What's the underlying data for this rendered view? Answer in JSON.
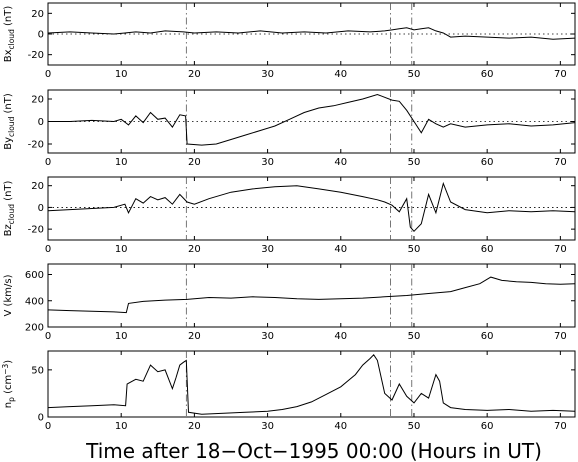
{
  "chart_data": [
    {
      "type": "line",
      "panel_id": "bx",
      "ylabel": "Bx",
      "ylabel_sub": "cloud",
      "ylabel_unit": "(nT)",
      "xlim": [
        0,
        72
      ],
      "ylim": [
        -30,
        30
      ],
      "yticks": [
        -20,
        0,
        20
      ],
      "xticks": [
        0,
        10,
        20,
        30,
        40,
        50,
        60,
        70
      ],
      "zero_line": true,
      "series": [
        {
          "x": [
            0,
            3,
            6,
            9,
            10.5,
            12,
            14,
            16,
            18.5,
            20,
            23,
            26,
            29,
            32,
            35,
            38,
            41,
            44,
            46,
            47,
            48,
            49,
            50,
            51,
            52,
            53,
            54,
            55,
            57,
            60,
            63,
            66,
            69,
            72
          ],
          "y": [
            1,
            2,
            1,
            0,
            1,
            2,
            1,
            3,
            2,
            1,
            2,
            1,
            3,
            1,
            2,
            1,
            3,
            2,
            3,
            4,
            5,
            6,
            4,
            5,
            6,
            3,
            1,
            -3,
            -2,
            -3,
            -4,
            -3,
            -5,
            -4
          ]
        }
      ]
    },
    {
      "type": "line",
      "panel_id": "by",
      "ylabel": "By",
      "ylabel_sub": "cloud",
      "ylabel_unit": "(nT)",
      "xlim": [
        0,
        72
      ],
      "ylim": [
        -28,
        28
      ],
      "yticks": [
        -20,
        0,
        20
      ],
      "xticks": [
        0,
        10,
        20,
        30,
        40,
        50,
        60,
        70
      ],
      "zero_line": true,
      "series": [
        {
          "x": [
            0,
            3,
            6,
            9,
            10,
            11,
            12,
            13,
            14,
            15,
            16,
            17,
            18,
            18.8,
            19,
            21,
            23,
            25,
            27,
            29,
            31,
            33,
            35,
            37,
            39,
            41,
            43,
            45,
            47,
            48,
            49,
            50,
            51,
            52,
            53,
            54,
            55,
            57,
            60,
            63,
            66,
            69,
            72
          ],
          "y": [
            0,
            0,
            1,
            0,
            2,
            -3,
            5,
            -1,
            8,
            2,
            3,
            -5,
            6,
            5,
            -20,
            -21,
            -20,
            -16,
            -12,
            -8,
            -4,
            2,
            8,
            12,
            14,
            17,
            20,
            24,
            19,
            18,
            10,
            0,
            -10,
            2,
            -2,
            -5,
            -2,
            -5,
            -3,
            -2,
            -4,
            -3,
            -1
          ]
        }
      ]
    },
    {
      "type": "line",
      "panel_id": "bz",
      "ylabel": "Bz",
      "ylabel_sub": "cloud",
      "ylabel_unit": "(nT)",
      "xlim": [
        0,
        72
      ],
      "ylim": [
        -30,
        28
      ],
      "yticks": [
        -20,
        0,
        20
      ],
      "xticks": [
        0,
        10,
        20,
        30,
        40,
        50,
        60,
        70
      ],
      "zero_line": true,
      "series": [
        {
          "x": [
            0,
            3,
            6,
            9,
            10.5,
            11,
            12,
            13,
            14,
            15,
            16,
            17,
            18,
            19,
            20,
            22,
            25,
            28,
            31,
            34,
            37,
            40,
            43,
            45,
            46,
            47,
            48,
            49,
            49.5,
            50,
            51,
            52,
            53,
            54,
            55,
            57,
            60,
            63,
            66,
            69,
            72
          ],
          "y": [
            -3,
            -2,
            -1,
            0,
            3,
            -5,
            8,
            4,
            10,
            7,
            9,
            3,
            12,
            5,
            3,
            8,
            14,
            17,
            19,
            20,
            17,
            14,
            10,
            7,
            5,
            2,
            -4,
            8,
            -18,
            -22,
            -15,
            12,
            -5,
            22,
            5,
            -2,
            -5,
            -3,
            -4,
            -3,
            -4
          ]
        }
      ]
    },
    {
      "type": "line",
      "panel_id": "v",
      "ylabel": "V",
      "ylabel_unit": "(km/s)",
      "xlim": [
        0,
        72
      ],
      "ylim": [
        200,
        680
      ],
      "yticks": [
        200,
        400,
        600
      ],
      "xticks": [
        0,
        10,
        20,
        30,
        40,
        50,
        60,
        70
      ],
      "zero_line": false,
      "series": [
        {
          "x": [
            0,
            3,
            6,
            9,
            10.7,
            11,
            13,
            16,
            19,
            22,
            25,
            28,
            31,
            34,
            37,
            40,
            43,
            46,
            49,
            52,
            55,
            57,
            59,
            60.5,
            62,
            64,
            66,
            68,
            70,
            72
          ],
          "y": [
            330,
            325,
            320,
            315,
            310,
            380,
            395,
            405,
            410,
            425,
            420,
            430,
            425,
            415,
            410,
            415,
            420,
            430,
            440,
            455,
            470,
            500,
            530,
            580,
            555,
            545,
            540,
            530,
            525,
            530
          ]
        }
      ]
    },
    {
      "type": "line",
      "panel_id": "np",
      "ylabel": "n",
      "ylabel_sub": "p",
      "ylabel_unit": "(cm",
      "ylabel_unit_sup": "−3",
      "ylabel_unit_end": ")",
      "xlim": [
        0,
        72
      ],
      "ylim": [
        0,
        70
      ],
      "yticks": [
        0,
        50
      ],
      "xticks": [
        0,
        10,
        20,
        30,
        40,
        50,
        60,
        70
      ],
      "zero_line": false,
      "series": [
        {
          "x": [
            0,
            3,
            6,
            9,
            10.6,
            10.8,
            12,
            13,
            14,
            15,
            16,
            17,
            17.5,
            18,
            18.5,
            18.9,
            19.2,
            21,
            24,
            27,
            30,
            32,
            34,
            36,
            38,
            40,
            42,
            43,
            44,
            44.5,
            45,
            46,
            47,
            48,
            49,
            50,
            51,
            52,
            53,
            53.5,
            54,
            55,
            57,
            60,
            63,
            66,
            69,
            72
          ],
          "y": [
            10,
            11,
            12,
            13,
            12,
            35,
            40,
            38,
            55,
            48,
            50,
            30,
            42,
            55,
            58,
            60,
            5,
            3,
            4,
            5,
            6,
            8,
            11,
            16,
            24,
            32,
            45,
            55,
            62,
            66,
            60,
            25,
            18,
            35,
            22,
            15,
            25,
            20,
            45,
            38,
            15,
            10,
            8,
            7,
            8,
            6,
            7,
            6
          ]
        }
      ]
    }
  ],
  "vlines": [
    18.9,
    46.8,
    49.7
  ],
  "xlabel": "Time after 18−Oct−1995 00:00 (Hours in UT)"
}
